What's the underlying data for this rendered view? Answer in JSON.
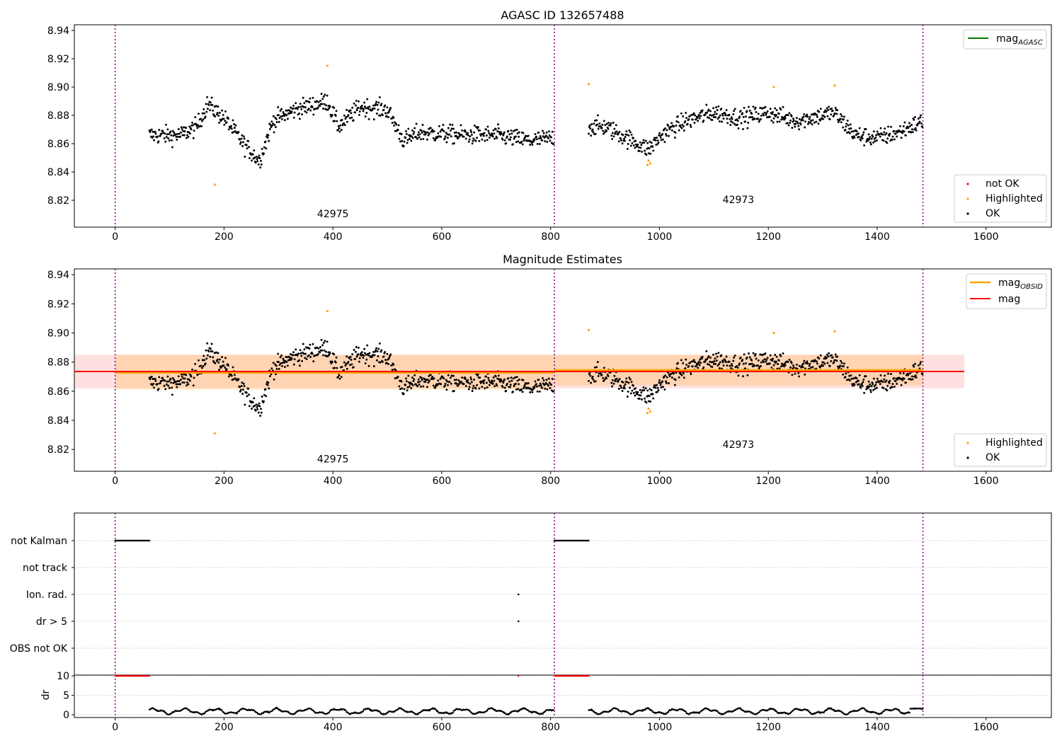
{
  "chart_data": [
    {
      "type": "scatter",
      "title": "AGASC ID 132657488",
      "xlim": [
        -75,
        1720
      ],
      "ylim": [
        8.801,
        8.944
      ],
      "xticks": [
        "0",
        "200",
        "400",
        "600",
        "800",
        "1000",
        "1200",
        "1400",
        "1600"
      ],
      "yticks": [
        "8.82",
        "8.84",
        "8.86",
        "8.88",
        "8.90",
        "8.92",
        "8.94"
      ],
      "observation_boundaries": [
        0,
        807,
        1484
      ],
      "observations": [
        {
          "label": "42975",
          "x": 400,
          "y": 8.808
        },
        {
          "label": "42973",
          "x": 1145,
          "y": 8.818
        }
      ],
      "legend_lines": [
        {
          "label": "mag",
          "subscript": "AGASC",
          "color": "#008000"
        }
      ],
      "legend_points": [
        {
          "label": "not OK",
          "color": "#ff0000"
        },
        {
          "label": "Highlighted",
          "color": "#ffa500"
        },
        {
          "label": "OK",
          "color": "#000000"
        }
      ],
      "highlighted_points": [
        [
          183,
          8.831
        ],
        [
          390,
          8.915
        ],
        [
          870,
          8.902
        ],
        [
          978,
          8.845
        ],
        [
          980,
          8.848
        ],
        [
          983,
          8.846
        ],
        [
          1210,
          8.9
        ],
        [
          1322,
          8.901
        ]
      ]
    },
    {
      "type": "scatter",
      "title": "Magnitude Estimates",
      "xlim": [
        -75,
        1720
      ],
      "ylim": [
        8.805,
        8.944
      ],
      "xticks": [
        "0",
        "200",
        "400",
        "600",
        "800",
        "1000",
        "1200",
        "1400",
        "1600"
      ],
      "yticks": [
        "8.82",
        "8.84",
        "8.86",
        "8.88",
        "8.90",
        "8.92",
        "8.94"
      ],
      "observation_boundaries": [
        0,
        807,
        1484
      ],
      "observations": [
        {
          "label": "42975",
          "x": 400,
          "y": 8.811
        },
        {
          "label": "42973",
          "x": 1145,
          "y": 8.821
        }
      ],
      "mag": 8.8735,
      "mag_band": [
        8.862,
        8.885
      ],
      "mag_obsid": [
        {
          "x": [
            0,
            807
          ],
          "value": 8.8727,
          "band": [
            8.861,
            8.885
          ]
        },
        {
          "x": [
            807,
            1484
          ],
          "value": 8.8745,
          "band": [
            8.864,
            8.885
          ]
        }
      ],
      "legend_lines": [
        {
          "label": "mag",
          "subscript": "OBSID",
          "color": "#ffa500"
        },
        {
          "label": "mag",
          "subscript": "",
          "color": "#ff0000"
        }
      ],
      "legend_points": [
        {
          "label": "Highlighted",
          "color": "#ffa500"
        },
        {
          "label": "OK",
          "color": "#000000"
        }
      ],
      "highlighted_points": [
        [
          183,
          8.831
        ],
        [
          390,
          8.915
        ],
        [
          870,
          8.902
        ],
        [
          978,
          8.845
        ],
        [
          980,
          8.848
        ],
        [
          983,
          8.846
        ],
        [
          1210,
          8.9
        ],
        [
          1322,
          8.901
        ]
      ]
    },
    {
      "type": "scatter",
      "title": "",
      "xlim": [
        -75,
        1720
      ],
      "xticks": [
        "0",
        "200",
        "400",
        "600",
        "800",
        "1000",
        "1200",
        "1400",
        "1600"
      ],
      "categories": [
        "not Kalman",
        "not track",
        "Ion. rad.",
        "dr > 5",
        "OBS not OK"
      ],
      "observation_boundaries": [
        0,
        807,
        1484
      ],
      "flag_ranges": [
        {
          "flag": "not Kalman",
          "x": [
            0,
            63
          ]
        },
        {
          "flag": "not Kalman",
          "x": [
            807,
            870
          ]
        }
      ],
      "flag_points": [
        {
          "flag": "Ion. rad.",
          "x": 741
        },
        {
          "flag": "dr > 5",
          "x": 741
        }
      ]
    },
    {
      "type": "line",
      "title": "",
      "ylabel": "dr",
      "xlim": [
        -75,
        1720
      ],
      "ylim": [
        -0.7,
        10.2
      ],
      "xticks": [
        "0",
        "200",
        "400",
        "600",
        "800",
        "1000",
        "1200",
        "1400",
        "1600"
      ],
      "yticks": [
        "0",
        "5",
        "10"
      ],
      "observation_boundaries": [
        0,
        807,
        1484
      ],
      "clipped_ranges": [
        [
          0,
          63
        ],
        [
          807,
          870
        ]
      ],
      "clipped_points": [
        741
      ],
      "clip_value": 10
    }
  ]
}
